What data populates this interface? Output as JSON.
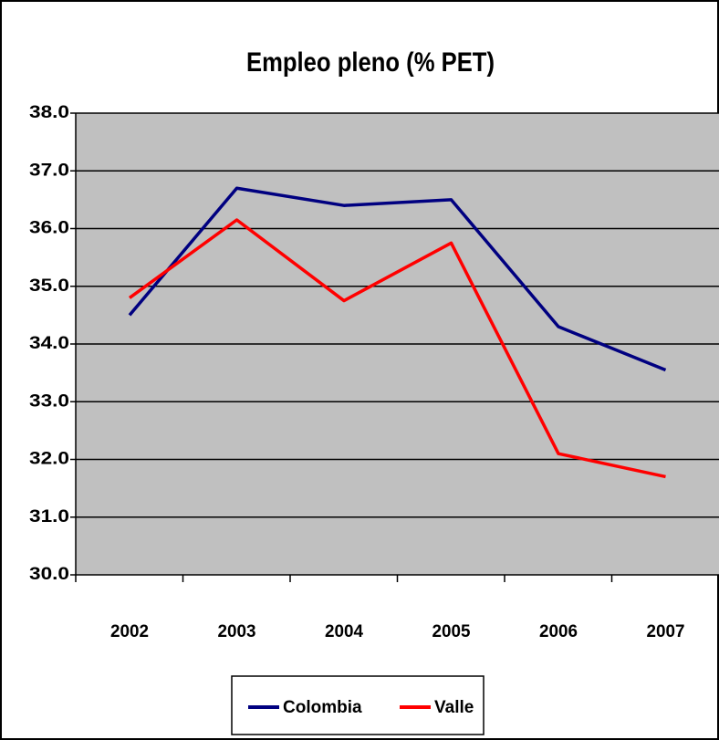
{
  "chart_data": {
    "type": "line",
    "title": "Empleo pleno (% PET)",
    "categories": [
      "2002",
      "2003",
      "2004",
      "2005",
      "2006",
      "2007"
    ],
    "series": [
      {
        "name": "Colombia",
        "color": "#000080",
        "values": [
          34.5,
          36.7,
          36.4,
          36.5,
          34.3,
          33.55
        ]
      },
      {
        "name": "Valle",
        "color": "#ff0000",
        "values": [
          34.8,
          36.15,
          34.75,
          35.75,
          32.1,
          31.7
        ]
      }
    ],
    "ylim": [
      30,
      38
    ],
    "yticks": [
      {
        "value": 30,
        "label": "30.0"
      },
      {
        "value": 31,
        "label": "31.0"
      },
      {
        "value": 32,
        "label": "32.0"
      },
      {
        "value": 33,
        "label": "33.0"
      },
      {
        "value": 34,
        "label": "34.0"
      },
      {
        "value": 35,
        "label": "35.0"
      },
      {
        "value": 36,
        "label": "36.0"
      },
      {
        "value": 37,
        "label": "37.0"
      },
      {
        "value": 38,
        "label": "38.0"
      }
    ],
    "grid": true,
    "plot_background": "#c0c0c0"
  }
}
